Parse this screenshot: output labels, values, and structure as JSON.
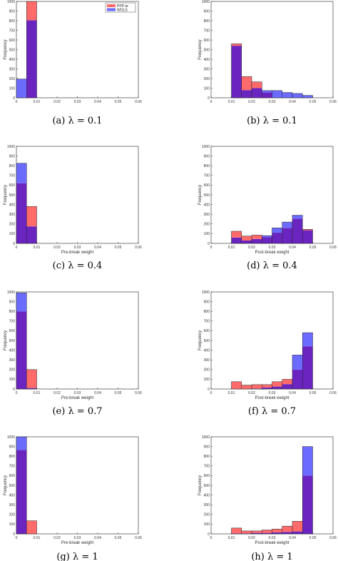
{
  "colors": {
    "ppp": "#ff6b6b",
    "wgls": "#6b6bff",
    "overlap": "#6a25c0",
    "edge": "#222222"
  },
  "legend": {
    "placement": "top-right",
    "entries": [
      "PPP-ϖ",
      "WGLS"
    ]
  },
  "chart_data": [
    {
      "type": "bar",
      "subtype": "overlaid-histogram",
      "panel": "a",
      "caption": "(a) λ = 0.1",
      "xlabel": "",
      "ylabel": "Frequency",
      "xlim": [
        0,
        0.06
      ],
      "ylim": [
        0,
        1000
      ],
      "xticks": [
        "0",
        "0.01",
        "0.02",
        "0.03",
        "0.04",
        "0.05",
        "0.06"
      ],
      "yticks": [
        "0",
        "100",
        "200",
        "300",
        "400",
        "500",
        "600",
        "700",
        "800",
        "900",
        "1000"
      ],
      "bin_edges": [
        0,
        0.005,
        0.01
      ],
      "series": [
        {
          "name": "PPP-ϖ",
          "values": [
            0,
            1000
          ]
        },
        {
          "name": "WGLS",
          "values": [
            195,
            805
          ]
        }
      ],
      "legend": true
    },
    {
      "type": "bar",
      "subtype": "overlaid-histogram",
      "panel": "b",
      "caption": "(b) λ = 0.1",
      "xlabel": "",
      "ylabel": "Frequency",
      "xlim": [
        0,
        0.06
      ],
      "ylim": [
        0,
        1000
      ],
      "xticks": [
        "0",
        "0.01",
        "0.02",
        "0.03",
        "0.04",
        "0.05",
        "0.06"
      ],
      "yticks": [
        "0",
        "100",
        "200",
        "300",
        "400",
        "500",
        "600",
        "700",
        "800",
        "900",
        "1000"
      ],
      "bin_edges": [
        0.01,
        0.015,
        0.02,
        0.025,
        0.03,
        0.035,
        0.04,
        0.045,
        0.05
      ],
      "series": [
        {
          "name": "PPP-ϖ",
          "values": [
            560,
            220,
            165,
            55,
            0,
            0,
            0,
            0
          ]
        },
        {
          "name": "WGLS",
          "values": [
            540,
            80,
            100,
            75,
            75,
            55,
            45,
            25
          ]
        }
      ],
      "legend": false
    },
    {
      "type": "bar",
      "subtype": "overlaid-histogram",
      "panel": "c",
      "caption": "(c) λ = 0.4",
      "xlabel": "Pre-break weight",
      "ylabel": "Frequency",
      "xlim": [
        0,
        0.06
      ],
      "ylim": [
        0,
        1000
      ],
      "xticks": [
        "0",
        "0.01",
        "0.02",
        "0.03",
        "0.04",
        "0.05",
        "0.06"
      ],
      "yticks": [
        "0",
        "100",
        "200",
        "300",
        "400",
        "500",
        "600",
        "700",
        "800",
        "900",
        "1000"
      ],
      "bin_edges": [
        0,
        0.005,
        0.01
      ],
      "series": [
        {
          "name": "PPP-ϖ",
          "values": [
            620,
            380
          ]
        },
        {
          "name": "WGLS",
          "values": [
            825,
            175
          ]
        }
      ],
      "legend": false
    },
    {
      "type": "bar",
      "subtype": "overlaid-histogram",
      "panel": "d",
      "caption": "(d) λ = 0.4",
      "xlabel": "Post-break weight",
      "ylabel": "Frequency",
      "xlim": [
        0,
        0.06
      ],
      "ylim": [
        0,
        1000
      ],
      "xticks": [
        "0",
        "0.01",
        "0.02",
        "0.03",
        "0.04",
        "0.05",
        "0.06"
      ],
      "yticks": [
        "0",
        "100",
        "200",
        "300",
        "400",
        "500",
        "600",
        "700",
        "800",
        "900",
        "1000"
      ],
      "bin_edges": [
        0.01,
        0.015,
        0.02,
        0.025,
        0.03,
        0.035,
        0.04,
        0.045,
        0.05
      ],
      "series": [
        {
          "name": "PPP-ϖ",
          "values": [
            125,
            75,
            85,
            65,
            110,
            160,
            255,
            145
          ]
        },
        {
          "name": "WGLS",
          "values": [
            60,
            30,
            45,
            80,
            160,
            220,
            290,
            135
          ]
        }
      ],
      "legend": false
    },
    {
      "type": "bar",
      "subtype": "overlaid-histogram",
      "panel": "e",
      "caption": "(e) λ = 0.7",
      "xlabel": "Pre-break weight",
      "ylabel": "Frequency",
      "xlim": [
        0,
        0.06
      ],
      "ylim": [
        0,
        1000
      ],
      "xticks": [
        "0",
        "0.01",
        "0.02",
        "0.03",
        "0.04",
        "0.05",
        "0.06"
      ],
      "yticks": [
        "0",
        "100",
        "200",
        "300",
        "400",
        "500",
        "600",
        "700",
        "800",
        "900",
        "1000"
      ],
      "bin_edges": [
        0,
        0.005,
        0.01
      ],
      "series": [
        {
          "name": "PPP-ϖ",
          "values": [
            800,
            200
          ]
        },
        {
          "name": "WGLS",
          "values": [
            990,
            10
          ]
        }
      ],
      "legend": false
    },
    {
      "type": "bar",
      "subtype": "overlaid-histogram",
      "panel": "f",
      "caption": "(f) λ = 0.7",
      "xlabel": "Post-break weight",
      "ylabel": "Frequency",
      "xlim": [
        0,
        0.06
      ],
      "ylim": [
        0,
        1000
      ],
      "xticks": [
        "0",
        "0.01",
        "0.02",
        "0.03",
        "0.04",
        "0.05",
        "0.06"
      ],
      "yticks": [
        "0",
        "100",
        "200",
        "300",
        "400",
        "500",
        "600",
        "700",
        "800",
        "900",
        "1000"
      ],
      "bin_edges": [
        0.01,
        0.015,
        0.02,
        0.025,
        0.03,
        0.035,
        0.04,
        0.045,
        0.05
      ],
      "series": [
        {
          "name": "PPP-ϖ",
          "values": [
            75,
            40,
            45,
            45,
            75,
            100,
            200,
            440
          ]
        },
        {
          "name": "WGLS",
          "values": [
            0,
            0,
            5,
            15,
            25,
            50,
            350,
            580
          ]
        }
      ],
      "legend": false
    },
    {
      "type": "bar",
      "subtype": "overlaid-histogram",
      "panel": "g",
      "caption": "(g) λ = 1",
      "xlabel": "Pre-break weight",
      "ylabel": "Frequency",
      "xlim": [
        0,
        0.06
      ],
      "ylim": [
        0,
        1000
      ],
      "xticks": [
        "0",
        "0.01",
        "0.02",
        "0.03",
        "0.04",
        "0.05",
        "0.06"
      ],
      "yticks": [
        "0",
        "100",
        "200",
        "300",
        "400",
        "500",
        "600",
        "700",
        "800",
        "900",
        "1000"
      ],
      "bin_edges": [
        0,
        0.005,
        0.01
      ],
      "series": [
        {
          "name": "PPP-ϖ",
          "values": [
            865,
            135
          ]
        },
        {
          "name": "WGLS",
          "values": [
            1000,
            0
          ]
        }
      ],
      "legend": false
    },
    {
      "type": "bar",
      "subtype": "overlaid-histogram",
      "panel": "h",
      "caption": "(h) λ = 1",
      "xlabel": "Post-break weight",
      "ylabel": "Frequency",
      "xlim": [
        0,
        0.06
      ],
      "ylim": [
        0,
        1000
      ],
      "xticks": [
        "0",
        "0.01",
        "0.02",
        "0.03",
        "0.04",
        "0.05",
        "0.06"
      ],
      "yticks": [
        "0",
        "100",
        "200",
        "300",
        "400",
        "500",
        "600",
        "700",
        "800",
        "900",
        "1000"
      ],
      "bin_edges": [
        0.01,
        0.015,
        0.02,
        0.025,
        0.03,
        0.035,
        0.04,
        0.045,
        0.05
      ],
      "series": [
        {
          "name": "PPP-ϖ",
          "values": [
            60,
            30,
            30,
            40,
            50,
            80,
            130,
            600
          ]
        },
        {
          "name": "WGLS",
          "values": [
            5,
            5,
            10,
            10,
            15,
            20,
            25,
            900
          ]
        }
      ],
      "legend": false
    }
  ]
}
